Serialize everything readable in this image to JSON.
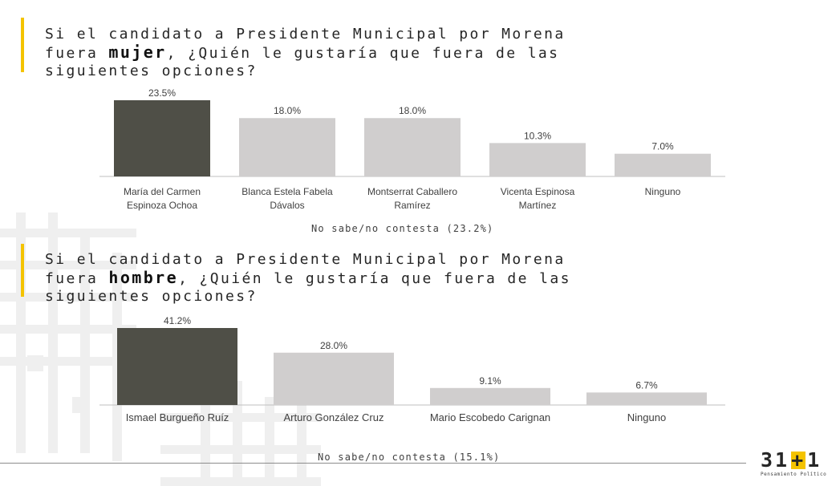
{
  "questions": [
    {
      "text_before": "Si el candidato a Presidente Municipal por Morena fuera ",
      "emphasis": "mujer",
      "text_after": ", ¿Quién le gustaría que fuera de las siguientes opciones?",
      "note": "No sabe/no contesta (23.2%)"
    },
    {
      "text_before": "Si el candidato a Presidente Municipal por Morena fuera ",
      "emphasis": "hombre",
      "text_after": ", ¿Quién le gustaría que fuera de las siguientes opciones?",
      "note": "No sabe/no contesta (15.1%)"
    }
  ],
  "chart_data": [
    {
      "type": "bar",
      "categories": [
        "María del Carmen Espinoza Ochoa",
        "Blanca Estela Fabela Dávalos",
        "Montserrat Caballero Ramírez",
        "Vicenta Espinosa Martínez",
        "Ninguno"
      ],
      "values": [
        23.5,
        18.0,
        18.0,
        10.3,
        7.0
      ],
      "value_labels": [
        "23.5%",
        "18.0%",
        "18.0%",
        "10.3%",
        "7.0%"
      ],
      "highlight_index": 0,
      "colors": {
        "highlight": "#4f4f47",
        "default": "#d0cece"
      }
    },
    {
      "type": "bar",
      "categories": [
        "Ismael Burgueño Ruíz",
        "Arturo González Cruz",
        "Mario Escobedo Carignan",
        "Ninguno"
      ],
      "values": [
        41.2,
        28.0,
        9.1,
        6.7
      ],
      "value_labels": [
        "41.2%",
        "28.0%",
        "9.1%",
        "6.7%"
      ],
      "highlight_index": 0,
      "colors": {
        "highlight": "#4f4f47",
        "default": "#d0cece"
      }
    }
  ],
  "logo": {
    "left": "31",
    "plus": "+",
    "right": "1",
    "tagline": "Pensamiento Político"
  },
  "accent_color": "#f4c300"
}
